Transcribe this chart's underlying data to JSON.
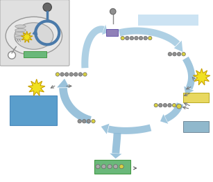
{
  "bg_color": "#ffffff",
  "inset_bg": "#e0e0e0",
  "light_blue_arrow": "#a8cce0",
  "medium_blue_arrow": "#7ab4d0",
  "dark_blue_arrow": "#5a9ec0",
  "green_rect": "#6ab87a",
  "yellow_rect": "#e8d860",
  "pale_blue_rect": "#c0ddf0",
  "blue_rect": "#5a9ecc",
  "gray_blue_rect": "#90b8cc",
  "purple_rect": "#9080b8",
  "yellow_star_color": "#f0e020",
  "yellow_star_outline": "#c8a000",
  "dot_gray": "#909090",
  "dot_yellow": "#d8d040",
  "dot_outline": "#666666",
  "dot_gray_light": "#aaaaaa"
}
